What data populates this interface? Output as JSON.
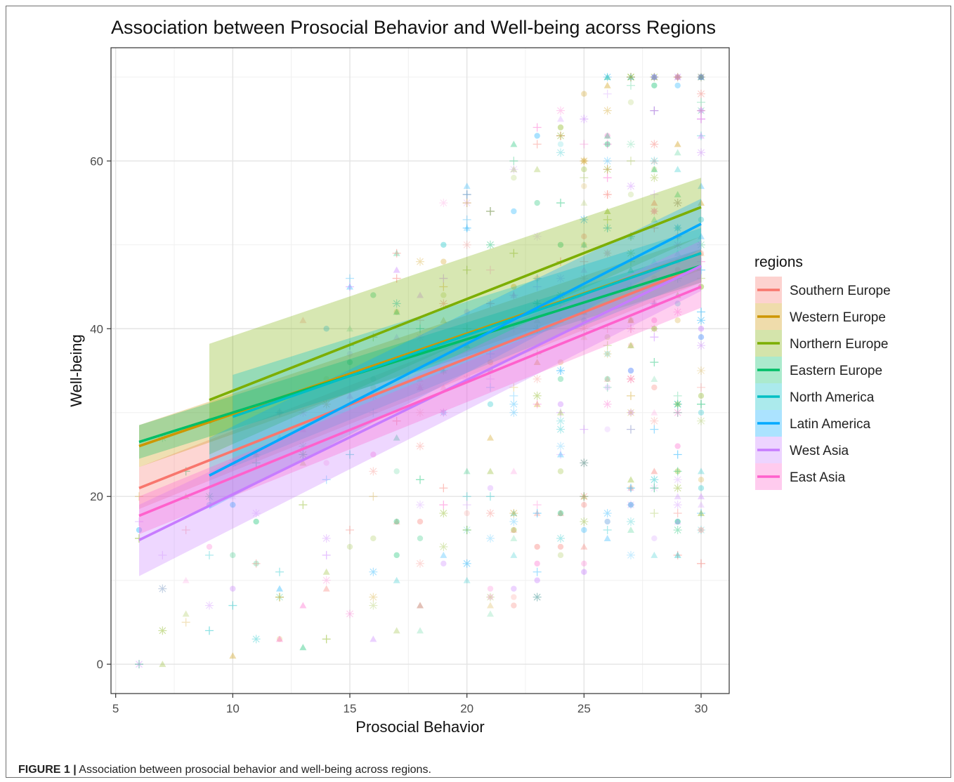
{
  "caption": {
    "label": "FIGURE 1 |",
    "text": "Association between prosocial behavior and well-being across regions."
  },
  "chart_data": {
    "type": "scatter",
    "title": "Association between Prosocial Behavior and Well-being acorss Regions",
    "xlabel": "Prosocial Behavior",
    "ylabel": "Well-being",
    "xlim": [
      4.8,
      31.2
    ],
    "ylim": [
      -3.5,
      73.5
    ],
    "xticks": [
      5,
      10,
      15,
      20,
      25,
      30
    ],
    "yticks": [
      0,
      20,
      40,
      60
    ],
    "grid": true,
    "legend_title": "regions",
    "legend_position": "right",
    "scatter_x_range": [
      6,
      30
    ],
    "scatter_y_range": [
      0,
      70
    ],
    "series": [
      {
        "name": "Southern Europe",
        "color": "#F8766D",
        "x": [
          6,
          30
        ],
        "y": [
          21.0,
          47.5
        ],
        "ci_lower": [
          18.5,
          45.5
        ],
        "ci_upper": [
          23.5,
          49.5
        ]
      },
      {
        "name": "Western Europe",
        "color": "#CD9600",
        "x": [
          6,
          30
        ],
        "y": [
          26.0,
          49.0
        ],
        "ci_lower": [
          23.5,
          47.0
        ],
        "ci_upper": [
          28.5,
          51.0
        ]
      },
      {
        "name": "Northern Europe",
        "color": "#7CAE00",
        "x": [
          9,
          30
        ],
        "y": [
          31.5,
          54.5
        ],
        "ci_lower": [
          25.0,
          51.0
        ],
        "ci_upper": [
          38.2,
          58.0
        ]
      },
      {
        "name": "Eastern Europe",
        "color": "#00BE67",
        "x": [
          6,
          30
        ],
        "y": [
          26.5,
          47.5
        ],
        "ci_lower": [
          24.5,
          45.5
        ],
        "ci_upper": [
          28.5,
          49.5
        ]
      },
      {
        "name": "North America",
        "color": "#00BFC4",
        "x": [
          10,
          30
        ],
        "y": [
          29.5,
          49.0
        ],
        "ci_lower": [
          23.5,
          46.0
        ],
        "ci_upper": [
          34.5,
          52.0
        ]
      },
      {
        "name": "Latin America",
        "color": "#00A9FF",
        "x": [
          9,
          30
        ],
        "y": [
          22.5,
          52.5
        ],
        "ci_lower": [
          18.5,
          49.5
        ],
        "ci_upper": [
          27.0,
          55.5
        ]
      },
      {
        "name": "West Asia",
        "color": "#C77CFF",
        "x": [
          6,
          30
        ],
        "y": [
          14.8,
          47.5
        ],
        "ci_lower": [
          10.5,
          44.5
        ],
        "ci_upper": [
          19.0,
          50.5
        ]
      },
      {
        "name": "East Asia",
        "color": "#FF61CC",
        "x": [
          6,
          30
        ],
        "y": [
          17.7,
          45.0
        ],
        "ci_lower": [
          15.5,
          42.5
        ],
        "ci_upper": [
          20.0,
          47.5
        ]
      }
    ]
  }
}
